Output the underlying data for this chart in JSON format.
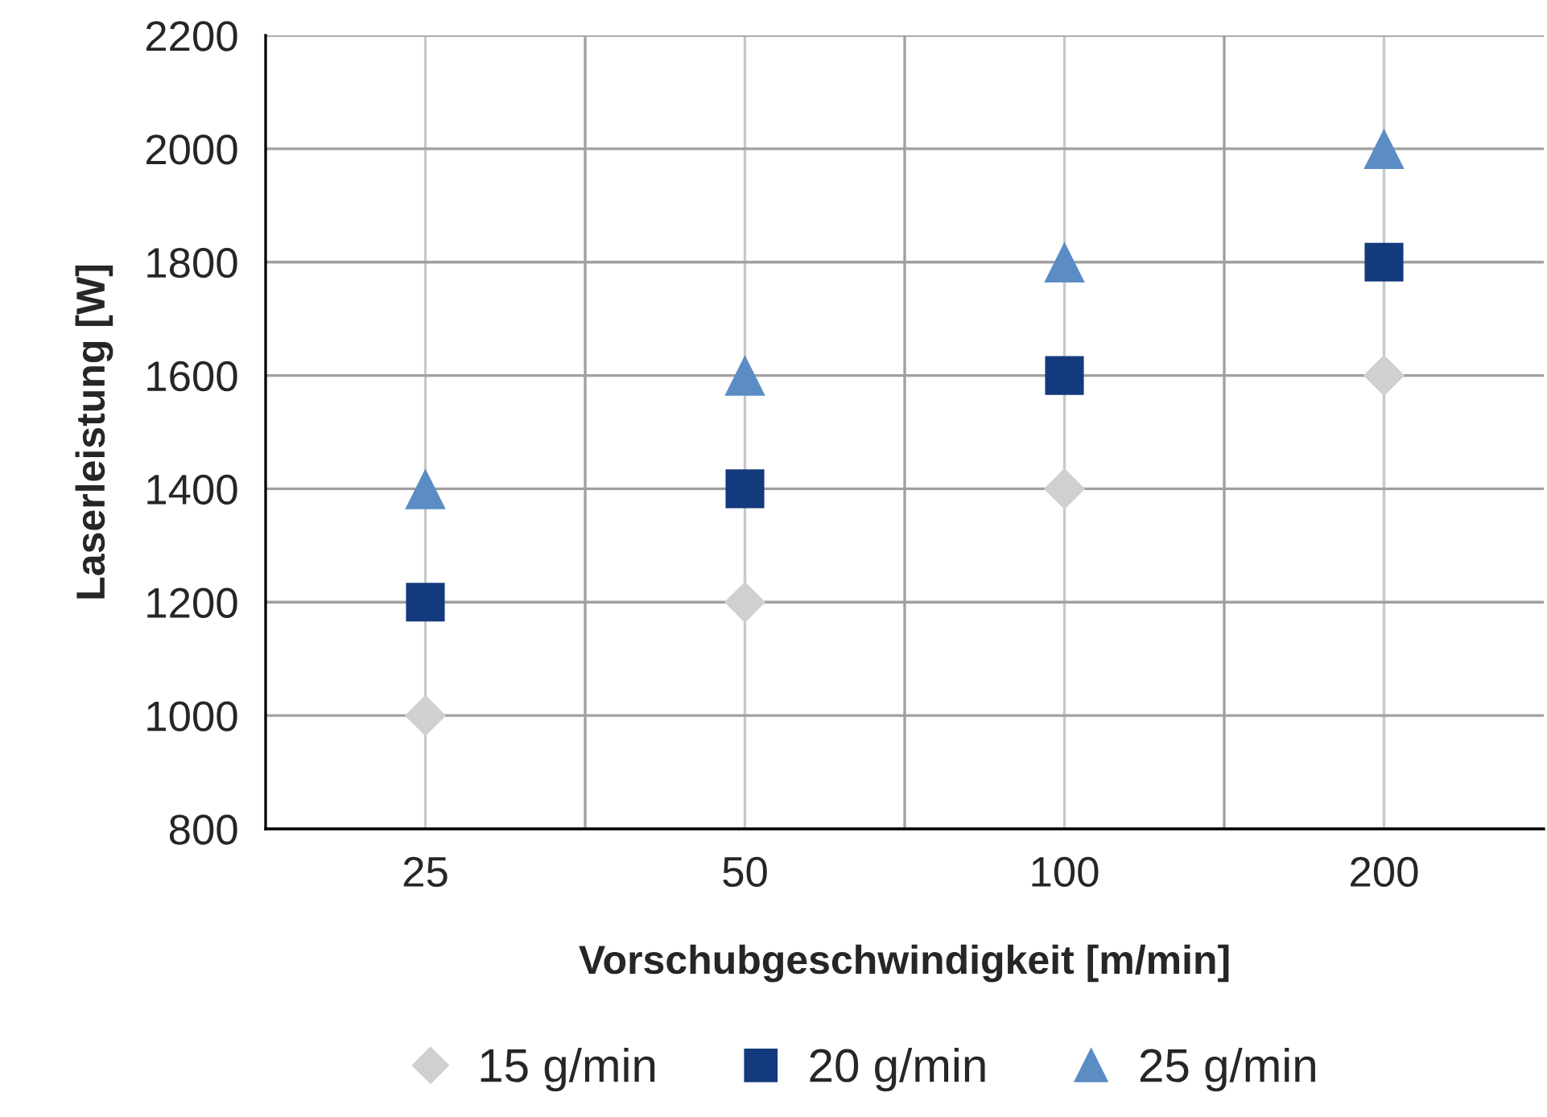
{
  "chart_data": {
    "type": "scatter",
    "xlabel": "Vorschubgeschwindigkeit [m/min]",
    "ylabel": "Laserleistung [W]",
    "categories": [
      "25",
      "50",
      "100",
      "200"
    ],
    "series": [
      {
        "name": "15 g/min",
        "color": "#d0d0d0",
        "marker": "diamond",
        "values": [
          1000,
          1200,
          1400,
          1600
        ]
      },
      {
        "name": "20 g/min",
        "color": "#133a7c",
        "marker": "square",
        "values": [
          1200,
          1400,
          1600,
          1800
        ]
      },
      {
        "name": "25 g/min",
        "color": "#5b8cc4",
        "marker": "triangle",
        "values": [
          1400,
          1600,
          1800,
          2000
        ]
      }
    ],
    "ylim": [
      800,
      2200
    ],
    "yticks": [
      800,
      1000,
      1200,
      1400,
      1600,
      1800,
      2000,
      2200
    ],
    "grid": true,
    "legend": "bottom"
  }
}
